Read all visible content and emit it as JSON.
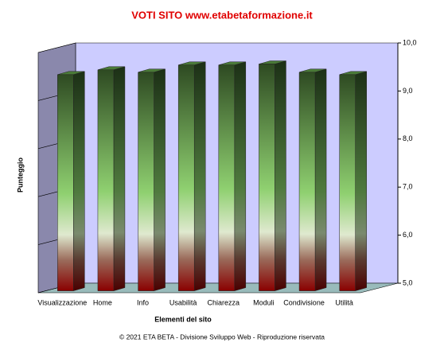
{
  "chart_data": {
    "type": "bar3d",
    "title": "VOTI SITO www.etabetaformazione.it",
    "x_label": "Elementi del sito",
    "y_label": "Punteggio",
    "footer": "© 2021 ETA BETA - Divisione Sviluppo Web - Riproduzione riservata",
    "categories": [
      "Visualizzazione",
      "Home",
      "Info",
      "Usabilità",
      "Chiarezza",
      "Moduli",
      "Condivisione",
      "Utilità"
    ],
    "values": [
      9.5,
      9.6,
      9.55,
      9.7,
      9.7,
      9.72,
      9.55,
      9.5
    ],
    "ylim": [
      5,
      10
    ],
    "yticks": [
      {
        "value": 5,
        "label": "5,0"
      },
      {
        "value": 6,
        "label": "6,0"
      },
      {
        "value": 7,
        "label": "7,0"
      },
      {
        "value": 8,
        "label": "8,0"
      },
      {
        "value": 9,
        "label": "9,0"
      },
      {
        "value": 10,
        "label": "10,0"
      }
    ],
    "grid": true
  }
}
